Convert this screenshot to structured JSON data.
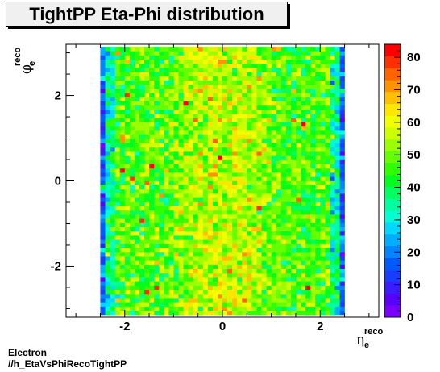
{
  "title": "TightPP Eta-Phi distribution",
  "footer": {
    "line1": "Electron",
    "line2": "//h_EtaVsPhiRecoTightPP"
  },
  "chart_data": {
    "type": "heatmap",
    "title": "TightPP Eta-Phi distribution",
    "xlabel": {
      "symbol": "η",
      "sub": "e",
      "sup": "reco"
    },
    "ylabel": {
      "symbol": "φ",
      "sub": "e",
      "sup": "reco"
    },
    "xlim": [
      -3.2,
      3.2
    ],
    "ylim": [
      -3.2,
      3.2
    ],
    "x_ticks": [
      -2,
      0,
      2
    ],
    "y_ticks": [
      -2,
      0,
      2
    ],
    "tick_labels_x": [
      "-2",
      "0",
      "2"
    ],
    "tick_labels_y": [
      "-2",
      "0",
      "2"
    ],
    "bins": {
      "eta_range": [
        -2.5,
        2.5
      ],
      "phi_range": [
        -3.1416,
        3.1416
      ],
      "n_eta": 50,
      "n_phi": 64
    },
    "z_range": [
      0,
      84
    ],
    "colorbar_ticks": [
      0,
      10,
      20,
      30,
      40,
      50,
      60,
      70,
      80
    ],
    "colorbar_labels": [
      "0",
      "10",
      "20",
      "30",
      "40",
      "50",
      "60",
      "70",
      "80"
    ],
    "colorbar_colors": [
      "#7a00ff",
      "#5a00ff",
      "#3a1cff",
      "#1a3cff",
      "#005aff",
      "#0084ff",
      "#00aeff",
      "#00d8ff",
      "#00ffd2",
      "#00ff9e",
      "#00ff60",
      "#00ff1e",
      "#30ff00",
      "#66ff00",
      "#9cff00",
      "#ccff00",
      "#f2ff00",
      "#ffe600",
      "#ffc000",
      "#ff9400",
      "#ff6400",
      "#ff3000",
      "#ff0000"
    ],
    "profile": {
      "edge_mean": 16,
      "mean_at_eta0": 57,
      "mean_at_eta_1.2": 47,
      "min": 0,
      "max": 84
    }
  }
}
